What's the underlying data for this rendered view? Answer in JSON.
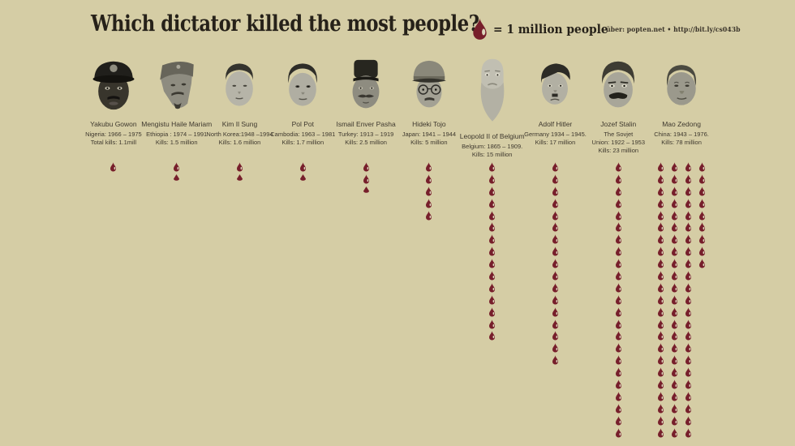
{
  "title": "Which dictator killed the most people?",
  "legend": {
    "icon": "blood-drop-icon",
    "label": "= 1 million people"
  },
  "source": "über: popten.net  •  http://bit.ly/cs043b",
  "colors": {
    "background": "#d5cda5",
    "drop": "#771f2b",
    "drop_highlight": "#ddd6bd",
    "ink": "#262119",
    "text": "#3e382e"
  },
  "dictators": [
    {
      "name": "Yakubu Gowon",
      "portrait": "gowon",
      "details": [
        "Nigeria: 1966 – 1975",
        "Total kills: 1.1mill"
      ],
      "drops": {
        "columns": [
          1
        ],
        "partial": false
      }
    },
    {
      "name": "Mengistu Haile Mariam",
      "portrait": "mengistu",
      "details": [
        "Ethiopia : 1974 – 1991",
        "Kills: 1.5 million"
      ],
      "drops": {
        "columns": [
          1
        ],
        "partial": true
      }
    },
    {
      "name": "Kim Il Sung",
      "portrait": "kim",
      "details": [
        "North Korea:1948 –1994",
        "Kills: 1.6 million"
      ],
      "drops": {
        "columns": [
          1
        ],
        "partial": true
      }
    },
    {
      "name": "Pol Pot",
      "portrait": "polpot",
      "details": [
        "Cambodia: 1963 – 1981",
        "Kills: 1.7 million"
      ],
      "drops": {
        "columns": [
          1
        ],
        "partial": true
      }
    },
    {
      "name": "Ismail Enver Pasha",
      "portrait": "enver",
      "details": [
        "Turkey: 1913 – 1919",
        "Kills: 2.5 million"
      ],
      "drops": {
        "columns": [
          2
        ],
        "partial": true
      }
    },
    {
      "name": "Hideki Tojo",
      "portrait": "tojo",
      "details": [
        "Japan: 1941 – 1944",
        "Kills: 5 million"
      ],
      "drops": {
        "columns": [
          5
        ],
        "partial": false
      }
    },
    {
      "name": "Leopold II of Belgium",
      "portrait": "leopold",
      "tall": true,
      "details": [
        "Belgium: 1865 – 1909.",
        "Kills: 15 million"
      ],
      "drops": {
        "columns": [
          15
        ],
        "partial": false
      }
    },
    {
      "name": "Adolf Hitler",
      "portrait": "hitler",
      "details": [
        "Germany 1934 – 1945.",
        "Kills: 17 million"
      ],
      "drops": {
        "columns": [
          17
        ],
        "partial": false
      }
    },
    {
      "name": "Jozef Stalin",
      "portrait": "stalin",
      "details": [
        "The Sovjet",
        "Union: 1922 – 1953",
        "Kills: 23 million"
      ],
      "drops": {
        "columns": [
          23
        ],
        "partial": false
      }
    },
    {
      "name": "Mao Zedong",
      "portrait": "mao",
      "details": [
        "China: 1943 – 1976.",
        "Kills: 78 million"
      ],
      "drops": {
        "columns": [
          23,
          23,
          23,
          9
        ],
        "partial": false
      }
    }
  ],
  "chart_data": {
    "type": "bar",
    "style": "pictogram (1 blood drop = 1 million people)",
    "title": "Which dictator killed the most people?",
    "unit": "million people killed",
    "categories": [
      "Yakubu Gowon",
      "Mengistu Haile Mariam",
      "Kim Il Sung",
      "Pol Pot",
      "Ismail Enver Pasha",
      "Hideki Tojo",
      "Leopold II of Belgium",
      "Adolf Hitler",
      "Jozef Stalin",
      "Mao Zedong"
    ],
    "values": [
      1.1,
      1.5,
      1.6,
      1.7,
      2.5,
      5,
      15,
      17,
      23,
      78
    ],
    "legend_position": "top-right",
    "grid": false
  }
}
